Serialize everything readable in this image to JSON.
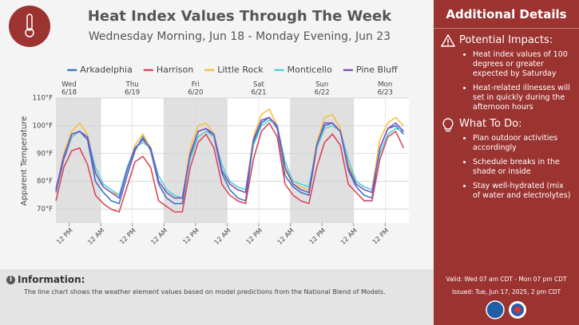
{
  "chart_data": {
    "type": "line",
    "title": "Heat Index Values Through The Week",
    "subtitle": "Wednesday Morning, Jun 18 - Monday Evening, Jun 23",
    "y_label": "Apparent Temperature",
    "x": [
      7,
      10,
      13,
      16,
      19,
      22,
      25,
      28,
      31,
      34,
      37,
      40,
      43,
      46,
      49,
      52,
      55,
      58,
      61,
      64,
      67,
      70,
      73,
      76,
      79,
      82,
      85,
      88,
      91,
      94,
      97,
      100,
      103,
      106,
      109,
      112,
      115,
      118,
      121,
      124,
      127,
      130,
      133,
      136,
      139
    ],
    "xlim": [
      7,
      141
    ],
    "xticks": [
      {
        "value": 12,
        "label": "12 PM"
      },
      {
        "value": 24,
        "label": "12 AM"
      },
      {
        "value": 36,
        "label": "12 PM"
      },
      {
        "value": 48,
        "label": "12 AM"
      },
      {
        "value": 60,
        "label": "12 PM"
      },
      {
        "value": 72,
        "label": "12 AM"
      },
      {
        "value": 84,
        "label": "12 PM"
      },
      {
        "value": 96,
        "label": "12 AM"
      },
      {
        "value": 108,
        "label": "12 PM"
      },
      {
        "value": 120,
        "label": "12 AM"
      },
      {
        "value": 132,
        "label": "12 PM"
      }
    ],
    "day_labels": [
      {
        "day": "Wed",
        "date": "6/18"
      },
      {
        "day": "Thu",
        "date": "6/19"
      },
      {
        "day": "Fri",
        "date": "6/20"
      },
      {
        "day": "Sat",
        "date": "6/21"
      },
      {
        "day": "Sun",
        "date": "6/22"
      },
      {
        "day": "Mon",
        "date": "6/23"
      }
    ],
    "ylim": [
      65,
      110
    ],
    "yticks": [
      {
        "value": 70,
        "label": "70°F"
      },
      {
        "value": 80,
        "label": "80°F"
      },
      {
        "value": 90,
        "label": "90°F"
      },
      {
        "value": 100,
        "label": "100°F"
      },
      {
        "value": 110,
        "label": "110°F"
      }
    ],
    "grid": true,
    "legend": "top",
    "series": [
      {
        "name": "Arkadelphia",
        "color": "#3a75c4",
        "values": [
          76,
          88,
          96,
          98,
          95,
          80,
          76,
          73,
          72,
          82,
          91,
          96,
          91,
          79,
          74,
          72,
          72,
          89,
          98,
          99,
          96,
          83,
          77,
          74,
          73,
          94,
          101,
          103,
          99,
          82,
          78,
          76,
          75,
          92,
          100,
          101,
          98,
          84,
          78,
          75,
          74,
          92,
          99,
          100,
          97
        ]
      },
      {
        "name": "Harrison",
        "color": "#d9475a",
        "values": [
          73,
          85,
          91,
          92,
          86,
          75,
          72,
          70,
          69,
          78,
          87,
          89,
          85,
          73,
          71,
          69,
          69,
          85,
          94,
          97,
          92,
          79,
          75,
          73,
          72,
          88,
          98,
          101,
          96,
          79,
          75,
          73,
          72,
          85,
          94,
          97,
          93,
          79,
          76,
          73,
          73,
          88,
          96,
          98,
          92
        ]
      },
      {
        "name": "Little Rock",
        "color": "#f5c242",
        "values": [
          77,
          90,
          98,
          101,
          97,
          83,
          78,
          76,
          75,
          84,
          93,
          97,
          92,
          80,
          76,
          74,
          74,
          92,
          100,
          101,
          97,
          84,
          79,
          77,
          76,
          96,
          104,
          106,
          100,
          84,
          79,
          78,
          77,
          94,
          103,
          104,
          99,
          86,
          80,
          78,
          77,
          95,
          101,
          103,
          100
        ]
      },
      {
        "name": "Monticello",
        "color": "#4fd3d3",
        "values": [
          77,
          89,
          96,
          98,
          96,
          85,
          79,
          77,
          75,
          85,
          92,
          94,
          92,
          82,
          77,
          75,
          74,
          88,
          96,
          98,
          96,
          86,
          80,
          78,
          77,
          93,
          100,
          102,
          100,
          87,
          80,
          79,
          78,
          92,
          99,
          100,
          98,
          88,
          80,
          78,
          77,
          90,
          97,
          99,
          98
        ]
      },
      {
        "name": "Pine Bluff",
        "color": "#7b52c4",
        "values": [
          77,
          89,
          97,
          98,
          96,
          83,
          78,
          76,
          74,
          84,
          92,
          95,
          92,
          80,
          76,
          74,
          74,
          90,
          98,
          99,
          97,
          84,
          79,
          77,
          76,
          95,
          102,
          103,
          100,
          85,
          79,
          77,
          76,
          93,
          101,
          101,
          98,
          85,
          79,
          77,
          76,
          92,
          99,
          101,
          98
        ]
      }
    ]
  },
  "info": {
    "heading": "Information:",
    "text": "The line chart shows the weather element values based on model predictions from the National Blend of Models."
  },
  "side": {
    "title": "Additional Details",
    "sections": [
      {
        "heading": "Potential Impacts:",
        "items": [
          "Heat index values of 100 degrees or greater expected by Saturday",
          "Heat-related illnesses will set in quickly during the afternoon hours"
        ]
      },
      {
        "heading": "What To Do:",
        "items": [
          "Plan outdoor activities accordingly",
          "Schedule breaks in the shade or inside",
          "Stay well-hydrated (mix of water and electrolytes)"
        ]
      }
    ],
    "valid": "Valid: Wed 07 am CDT - Mon 07 pm CDT",
    "issued": "Issued: Tue, Jun 17, 2025, 2 pm CDT"
  }
}
